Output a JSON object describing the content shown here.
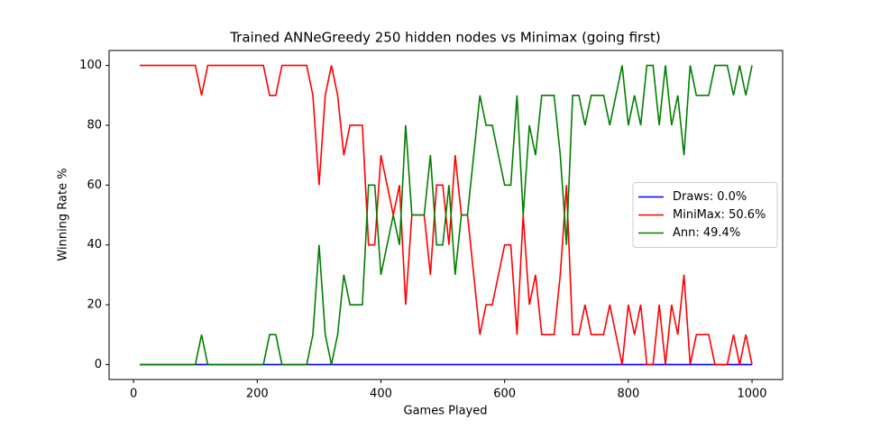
{
  "chart_data": {
    "type": "line",
    "title": "Trained ANNeGreedy 250 hidden nodes vs Minimax (going first)",
    "x_label": "Games Played",
    "y_label": "Winning Rate %",
    "x": [
      10,
      20,
      30,
      40,
      50,
      60,
      70,
      80,
      90,
      100,
      110,
      120,
      130,
      140,
      150,
      160,
      170,
      180,
      190,
      200,
      210,
      220,
      230,
      240,
      250,
      260,
      270,
      280,
      290,
      300,
      310,
      320,
      330,
      340,
      350,
      360,
      370,
      380,
      390,
      400,
      410,
      420,
      430,
      440,
      450,
      460,
      470,
      480,
      490,
      500,
      510,
      520,
      530,
      540,
      550,
      560,
      570,
      580,
      590,
      600,
      610,
      620,
      630,
      640,
      650,
      660,
      670,
      680,
      690,
      700,
      710,
      720,
      730,
      740,
      750,
      760,
      770,
      780,
      790,
      800,
      810,
      820,
      830,
      840,
      850,
      860,
      870,
      880,
      890,
      900,
      910,
      920,
      930,
      940,
      950,
      960,
      970,
      980,
      990,
      1000
    ],
    "series": [
      {
        "name": "Draws: 0.0%",
        "color": "#0000ff",
        "values": [
          0,
          0,
          0,
          0,
          0,
          0,
          0,
          0,
          0,
          0,
          0,
          0,
          0,
          0,
          0,
          0,
          0,
          0,
          0,
          0,
          0,
          0,
          0,
          0,
          0,
          0,
          0,
          0,
          0,
          0,
          0,
          0,
          0,
          0,
          0,
          0,
          0,
          0,
          0,
          0,
          0,
          0,
          0,
          0,
          0,
          0,
          0,
          0,
          0,
          0,
          0,
          0,
          0,
          0,
          0,
          0,
          0,
          0,
          0,
          0,
          0,
          0,
          0,
          0,
          0,
          0,
          0,
          0,
          0,
          0,
          0,
          0,
          0,
          0,
          0,
          0,
          0,
          0,
          0,
          0,
          0,
          0,
          0,
          0,
          0,
          0,
          0,
          0,
          0,
          0,
          0,
          0,
          0,
          0,
          0,
          0,
          0,
          0,
          0,
          0
        ]
      },
      {
        "name": "MiniMax: 50.6%",
        "color": "#ff0000",
        "values": [
          100,
          100,
          100,
          100,
          100,
          100,
          100,
          100,
          100,
          100,
          90,
          100,
          100,
          100,
          100,
          100,
          100,
          100,
          100,
          100,
          100,
          90,
          90,
          100,
          100,
          100,
          100,
          100,
          90,
          60,
          90,
          100,
          90,
          70,
          80,
          80,
          80,
          40,
          40,
          70,
          60,
          50,
          60,
          20,
          50,
          50,
          50,
          30,
          60,
          60,
          40,
          70,
          50,
          50,
          30,
          10,
          20,
          20,
          30,
          40,
          40,
          10,
          50,
          20,
          30,
          10,
          10,
          10,
          30,
          60,
          10,
          10,
          20,
          10,
          10,
          10,
          20,
          10,
          0,
          20,
          10,
          20,
          0,
          0,
          20,
          0,
          20,
          10,
          30,
          0,
          10,
          10,
          10,
          0,
          0,
          0,
          10,
          0,
          10,
          0
        ]
      },
      {
        "name": "Ann: 49.4%",
        "color": "#008000",
        "values": [
          0,
          0,
          0,
          0,
          0,
          0,
          0,
          0,
          0,
          0,
          10,
          0,
          0,
          0,
          0,
          0,
          0,
          0,
          0,
          0,
          0,
          10,
          10,
          0,
          0,
          0,
          0,
          0,
          10,
          40,
          10,
          0,
          10,
          30,
          20,
          20,
          20,
          60,
          60,
          30,
          40,
          50,
          40,
          80,
          50,
          50,
          50,
          70,
          40,
          40,
          60,
          30,
          50,
          50,
          70,
          90,
          80,
          80,
          70,
          60,
          60,
          90,
          50,
          80,
          70,
          90,
          90,
          90,
          70,
          40,
          90,
          90,
          80,
          90,
          90,
          90,
          80,
          90,
          100,
          80,
          90,
          80,
          100,
          100,
          80,
          100,
          80,
          90,
          70,
          100,
          90,
          90,
          90,
          100,
          100,
          100,
          90,
          100,
          90,
          100
        ]
      }
    ],
    "xlim": [
      -39.5,
      1049.5
    ],
    "ylim": [
      -5,
      105
    ],
    "xticks": [
      0,
      200,
      400,
      600,
      800,
      1000
    ],
    "yticks": [
      0,
      20,
      40,
      60,
      80,
      100
    ],
    "grid": false,
    "legend": "center right"
  }
}
